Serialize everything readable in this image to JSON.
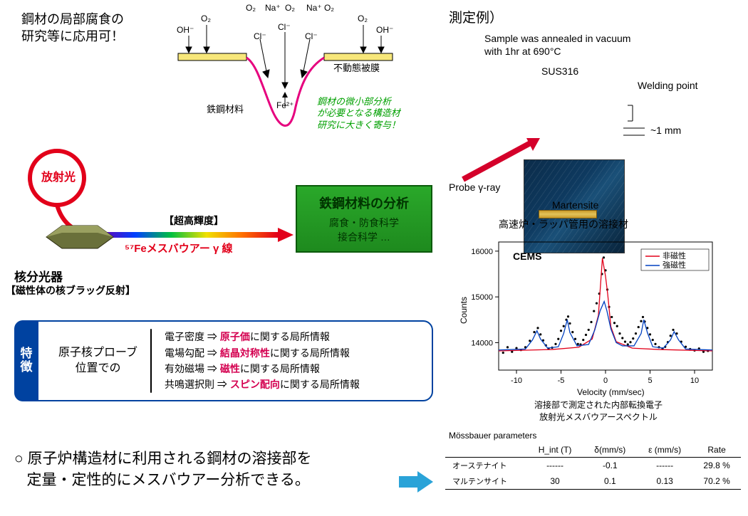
{
  "headline_l1": "鋼材の局部腐食の",
  "headline_l2": "研究等に応用可！",
  "measurement_title": "測定例）",
  "corrosion": {
    "ions_top": [
      "O₂",
      "Na⁺",
      "O₂",
      "Na⁺",
      "O₂"
    ],
    "left": {
      "O2": "O₂",
      "OH": "OH⁻"
    },
    "right": {
      "O2": "O₂",
      "OH": "OH⁻"
    },
    "Cl_top": "Cl⁻",
    "Cl_mid_l": "Cl⁻",
    "Cl_mid_r": "Cl⁻",
    "Fe2": "Fe²⁺",
    "passive_film": "不動態被膜",
    "steel": "鉄鋼材料"
  },
  "green_note_l1": "鋼材の微小部分析",
  "green_note_l2": "が必要となる構造材",
  "green_note_l3": "研究に大きく寄与！",
  "sr": {
    "label": "放射光",
    "brightness": "【超高輝度】",
    "mossbauer_l": "⁵⁷Feメスバウアー γ 線",
    "monochromator_l1": "核分光器",
    "monochromator_l2": "【磁性体の核ブラッグ反射】",
    "ring_color": "#e2001a"
  },
  "gbox": {
    "title": "鉄鋼材料の分析",
    "line1": "腐食・防食科学",
    "line2": "接合科学   …"
  },
  "features": {
    "tab_c1": "特",
    "tab_c2": "徴",
    "lead_l1": "原子核プローブ",
    "lead_l2": "位置での",
    "r1a": "電子密度 ⇒ ",
    "r1b": "原子価",
    "r1c": "に関する局所情報",
    "r2a": "電場勾配 ⇒ ",
    "r2b": "結晶対称性",
    "r2c": "に関する局所情報",
    "r3a": "有効磁場 ⇒ ",
    "r3b": "磁性",
    "r3c": "に関する局所情報",
    "r4a": "共鳴選択則 ⇒ ",
    "r4b": "スピン配向",
    "r4c": "に関する局所情報"
  },
  "conclusion_bullet": "○",
  "conclusion_l1": "原子炉構造材に利用される鋼材の溶接部を",
  "conclusion_l2": "定量・定性的にメスバウアー分析できる。",
  "sample": {
    "anneal_l1": "Sample was annealed in vacuum",
    "anneal_l2": "with 1hr at 690°C",
    "sus": "SUS316",
    "welding_point": "Welding point",
    "mm": "~1 mm",
    "probe": "Probe γ-ray",
    "martensite": "Martensite",
    "caption": "高速炉・ラッパ管用の溶接材",
    "probe_color": "#d4002a"
  },
  "chart": {
    "title_l1": "溶接部で測定された内部転換電子",
    "title_l2": "放射光メスバウアースペクトル",
    "panel_label": "CEMS",
    "legend_ns": "非磁性",
    "legend_fs": "強磁性",
    "legend_ns_color": "#e2001a",
    "legend_fs_color": "#0040c0",
    "xlabel": "Velocity (mm/sec)",
    "ylabel": "Counts",
    "xlim": [
      -12,
      12
    ],
    "xticks": [
      -10,
      -5,
      0,
      5,
      10
    ],
    "ylim": [
      13400,
      16200
    ],
    "yticks": [
      14000,
      15000,
      16000
    ],
    "scatter": [
      [
        -11.5,
        13780
      ],
      [
        -11,
        13900
      ],
      [
        -10.5,
        13800
      ],
      [
        -10,
        13880
      ],
      [
        -9.5,
        13840
      ],
      [
        -9,
        13900
      ],
      [
        -8.5,
        14040
      ],
      [
        -8,
        14230
      ],
      [
        -7.6,
        14320
      ],
      [
        -7.3,
        14180
      ],
      [
        -7,
        14050
      ],
      [
        -6.7,
        13940
      ],
      [
        -6.4,
        13870
      ],
      [
        -6,
        13890
      ],
      [
        -5.6,
        13970
      ],
      [
        -5.3,
        14080
      ],
      [
        -5,
        14260
      ],
      [
        -4.7,
        14360
      ],
      [
        -4.4,
        14500
      ],
      [
        -4.2,
        14570
      ],
      [
        -4,
        14420
      ],
      [
        -3.7,
        14230
      ],
      [
        -3.4,
        14080
      ],
      [
        -3.1,
        13970
      ],
      [
        -2.8,
        13960
      ],
      [
        -2.5,
        14060
      ],
      [
        -2.2,
        14170
      ],
      [
        -1.9,
        14280
      ],
      [
        -1.6,
        14450
      ],
      [
        -1.3,
        14690
      ],
      [
        -1,
        14860
      ],
      [
        -0.7,
        15070
      ],
      [
        -0.4,
        15500
      ],
      [
        -0.2,
        15860
      ],
      [
        0,
        15580
      ],
      [
        0.2,
        15160
      ],
      [
        0.4,
        14780
      ],
      [
        0.7,
        14560
      ],
      [
        1,
        14430
      ],
      [
        1.3,
        14360
      ],
      [
        1.6,
        14200
      ],
      [
        1.9,
        14100
      ],
      [
        2.2,
        14020
      ],
      [
        2.5,
        13960
      ],
      [
        2.8,
        14010
      ],
      [
        3.1,
        14090
      ],
      [
        3.4,
        14200
      ],
      [
        3.7,
        14340
      ],
      [
        4,
        14470
      ],
      [
        4.2,
        14560
      ],
      [
        4.4,
        14460
      ],
      [
        4.7,
        14320
      ],
      [
        5,
        14180
      ],
      [
        5.3,
        14060
      ],
      [
        5.6,
        13970
      ],
      [
        6,
        13900
      ],
      [
        6.4,
        13870
      ],
      [
        6.7,
        13910
      ],
      [
        7,
        14010
      ],
      [
        7.3,
        14150
      ],
      [
        7.6,
        14280
      ],
      [
        8,
        14200
      ],
      [
        8.5,
        14020
      ],
      [
        9,
        13910
      ],
      [
        9.5,
        13860
      ],
      [
        10,
        13830
      ],
      [
        10.5,
        13870
      ],
      [
        11,
        13800
      ],
      [
        11.5,
        13820
      ]
    ],
    "ns_line": [
      [
        -12,
        13820
      ],
      [
        -6,
        13850
      ],
      [
        -3,
        13900
      ],
      [
        -1.5,
        14080
      ],
      [
        -0.8,
        14600
      ],
      [
        -0.35,
        15850
      ],
      [
        0,
        15450
      ],
      [
        0.25,
        15050
      ],
      [
        0.6,
        14350
      ],
      [
        1.2,
        14020
      ],
      [
        3,
        13880
      ],
      [
        6,
        13850
      ],
      [
        12,
        13820
      ]
    ],
    "fs_line": [
      [
        -12,
        13840
      ],
      [
        -9,
        13860
      ],
      [
        -8.2,
        14060
      ],
      [
        -7.7,
        14260
      ],
      [
        -7.3,
        14080
      ],
      [
        -6.5,
        13880
      ],
      [
        -5.3,
        13910
      ],
      [
        -4.7,
        14200
      ],
      [
        -4.3,
        14500
      ],
      [
        -4,
        14220
      ],
      [
        -3.2,
        13930
      ],
      [
        -1.9,
        13960
      ],
      [
        -1.2,
        14280
      ],
      [
        -0.6,
        14700
      ],
      [
        -0.15,
        14900
      ],
      [
        0.15,
        14700
      ],
      [
        0.6,
        14300
      ],
      [
        1.2,
        14000
      ],
      [
        1.9,
        13930
      ],
      [
        3.2,
        13930
      ],
      [
        4,
        14200
      ],
      [
        4.3,
        14500
      ],
      [
        4.7,
        14220
      ],
      [
        5.3,
        13910
      ],
      [
        6.5,
        13880
      ],
      [
        7.3,
        14060
      ],
      [
        7.7,
        14240
      ],
      [
        8.2,
        14060
      ],
      [
        9,
        13860
      ],
      [
        12,
        13840
      ]
    ]
  },
  "table": {
    "title": "Mössbauer parameters",
    "cols": [
      "",
      "H_int (T)",
      "δ(mm/s)",
      "ε (mm/s)",
      "Rate"
    ],
    "rows": [
      [
        "オーステナイト",
        "------",
        "-0.1",
        "------",
        "29.8 %"
      ],
      [
        "マルテンサイト",
        "30",
        "0.1",
        "0.13",
        "70.2 %"
      ]
    ]
  }
}
